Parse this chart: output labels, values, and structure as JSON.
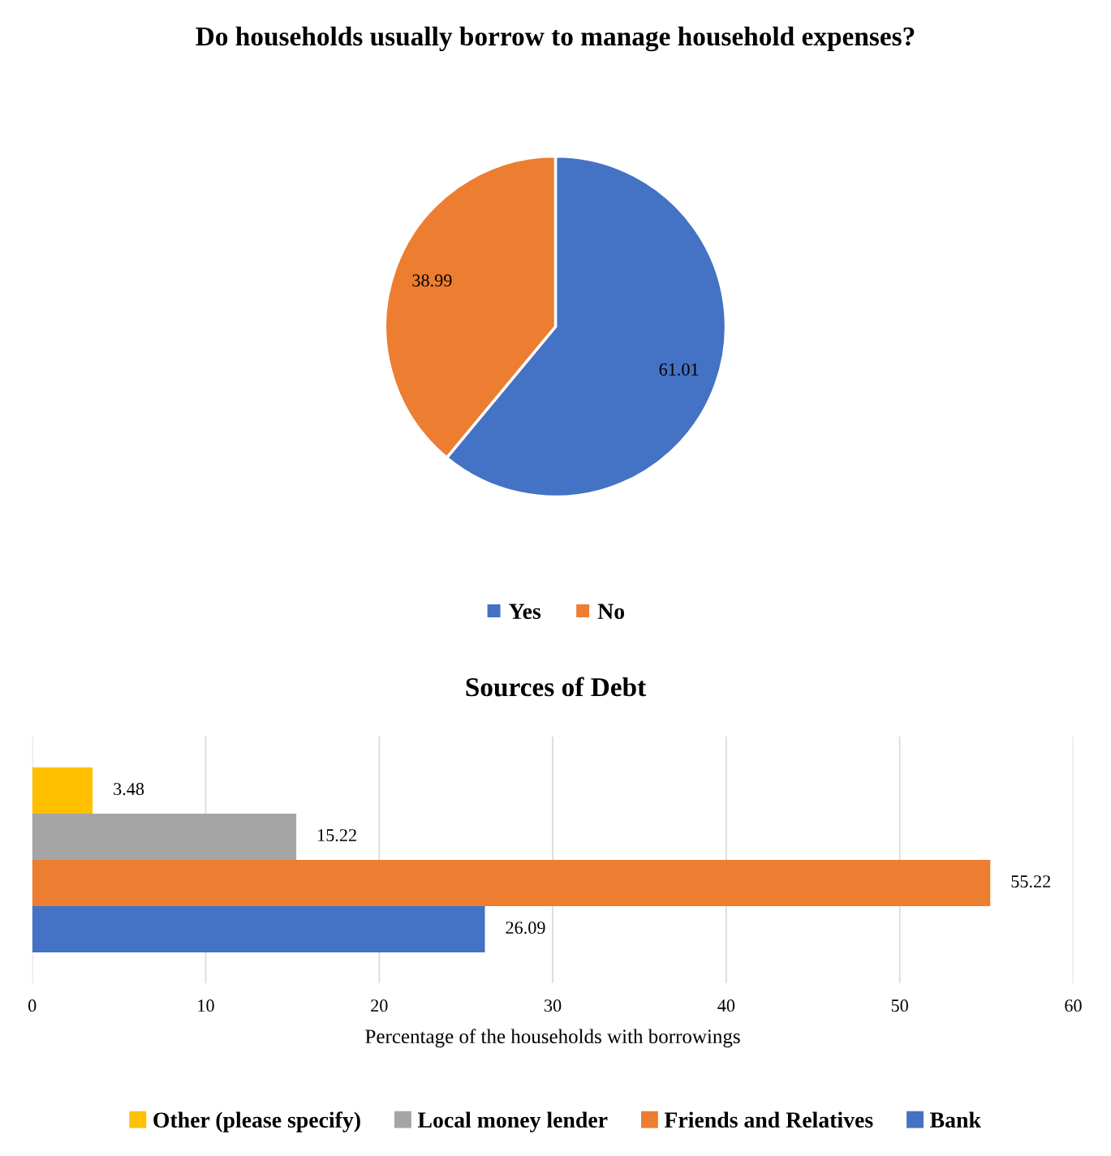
{
  "chart_data": [
    {
      "type": "pie",
      "title": "Do households usually borrow to manage household expenses?",
      "categories": [
        "Yes",
        "No"
      ],
      "values": [
        61.01,
        38.99
      ],
      "colors": [
        "#4472c4",
        "#ed7d31"
      ],
      "data_labels": true,
      "legend": "bottom"
    },
    {
      "type": "bar",
      "orientation": "horizontal",
      "title": "Sources of Debt",
      "xlabel": "Percentage of the households with borrowings",
      "categories": [
        null
      ],
      "series": [
        {
          "name": "Other (please specify)",
          "color": "#ffc000",
          "values": [
            3.48
          ]
        },
        {
          "name": "Local money lender",
          "color": "#a5a5a5",
          "values": [
            15.22
          ]
        },
        {
          "name": "Friends and Relatives",
          "color": "#ed7d31",
          "values": [
            55.22
          ]
        },
        {
          "name": "Bank",
          "color": "#4472c4",
          "values": [
            26.09
          ]
        }
      ],
      "xlim": [
        0,
        60
      ],
      "xticks": [
        0,
        10,
        20,
        30,
        40,
        50,
        60
      ],
      "grid": "x",
      "data_labels": true,
      "legend": "bottom"
    }
  ]
}
